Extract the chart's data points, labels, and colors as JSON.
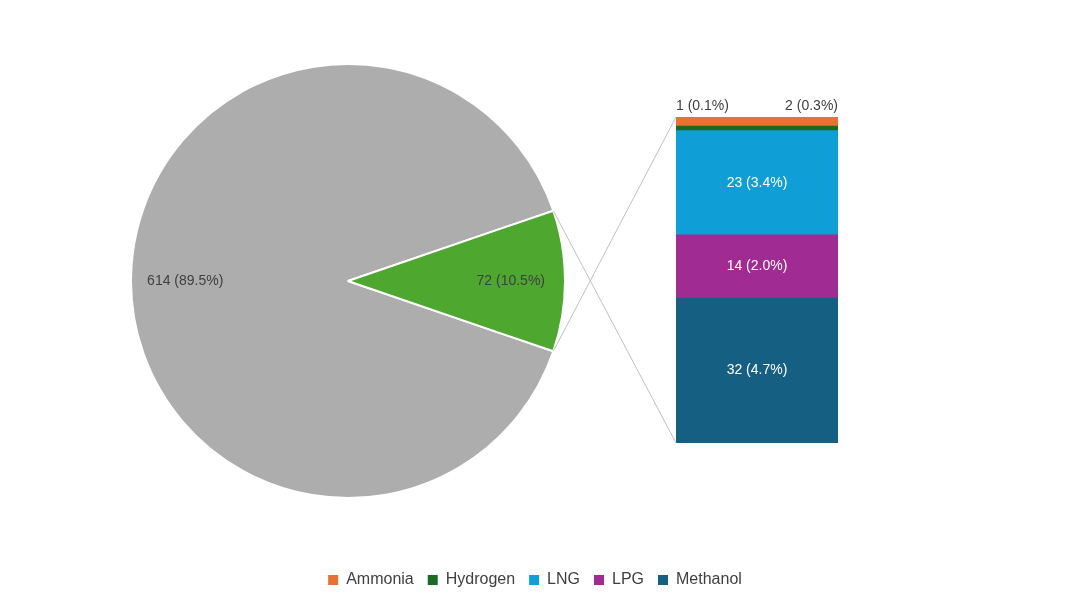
{
  "chart_data": [
    {
      "type": "pie",
      "categories": [
        null,
        null
      ],
      "values": [
        614,
        72
      ],
      "colors": [
        "#adadad",
        "#4ea72e"
      ],
      "value_labels": [
        "614 (89.5%)",
        "72 (10.5%)"
      ],
      "legend": false
    },
    {
      "type": "bar",
      "stacked": true,
      "categories": [
        null
      ],
      "ylim": [
        0,
        72
      ],
      "legend": "bottom",
      "series": [
        {
          "name": "Methanol",
          "color": "#156082",
          "values": [
            32
          ],
          "value_labels": [
            "32 (4.7%)"
          ]
        },
        {
          "name": "LPG",
          "color": "#a02b93",
          "values": [
            14
          ],
          "value_labels": [
            "14 (2.0%)"
          ]
        },
        {
          "name": "LNG",
          "color": "#0f9ed5",
          "values": [
            23
          ],
          "value_labels": [
            "23 (3.4%)"
          ]
        },
        {
          "name": "Hydrogen",
          "color": "#196b24",
          "values": [
            1
          ],
          "value_labels": [
            "1 (0.1%)"
          ]
        },
        {
          "name": "Ammonia",
          "color": "#e97132",
          "values": [
            2
          ],
          "value_labels": [
            "2 (0.3%)"
          ]
        }
      ]
    }
  ]
}
